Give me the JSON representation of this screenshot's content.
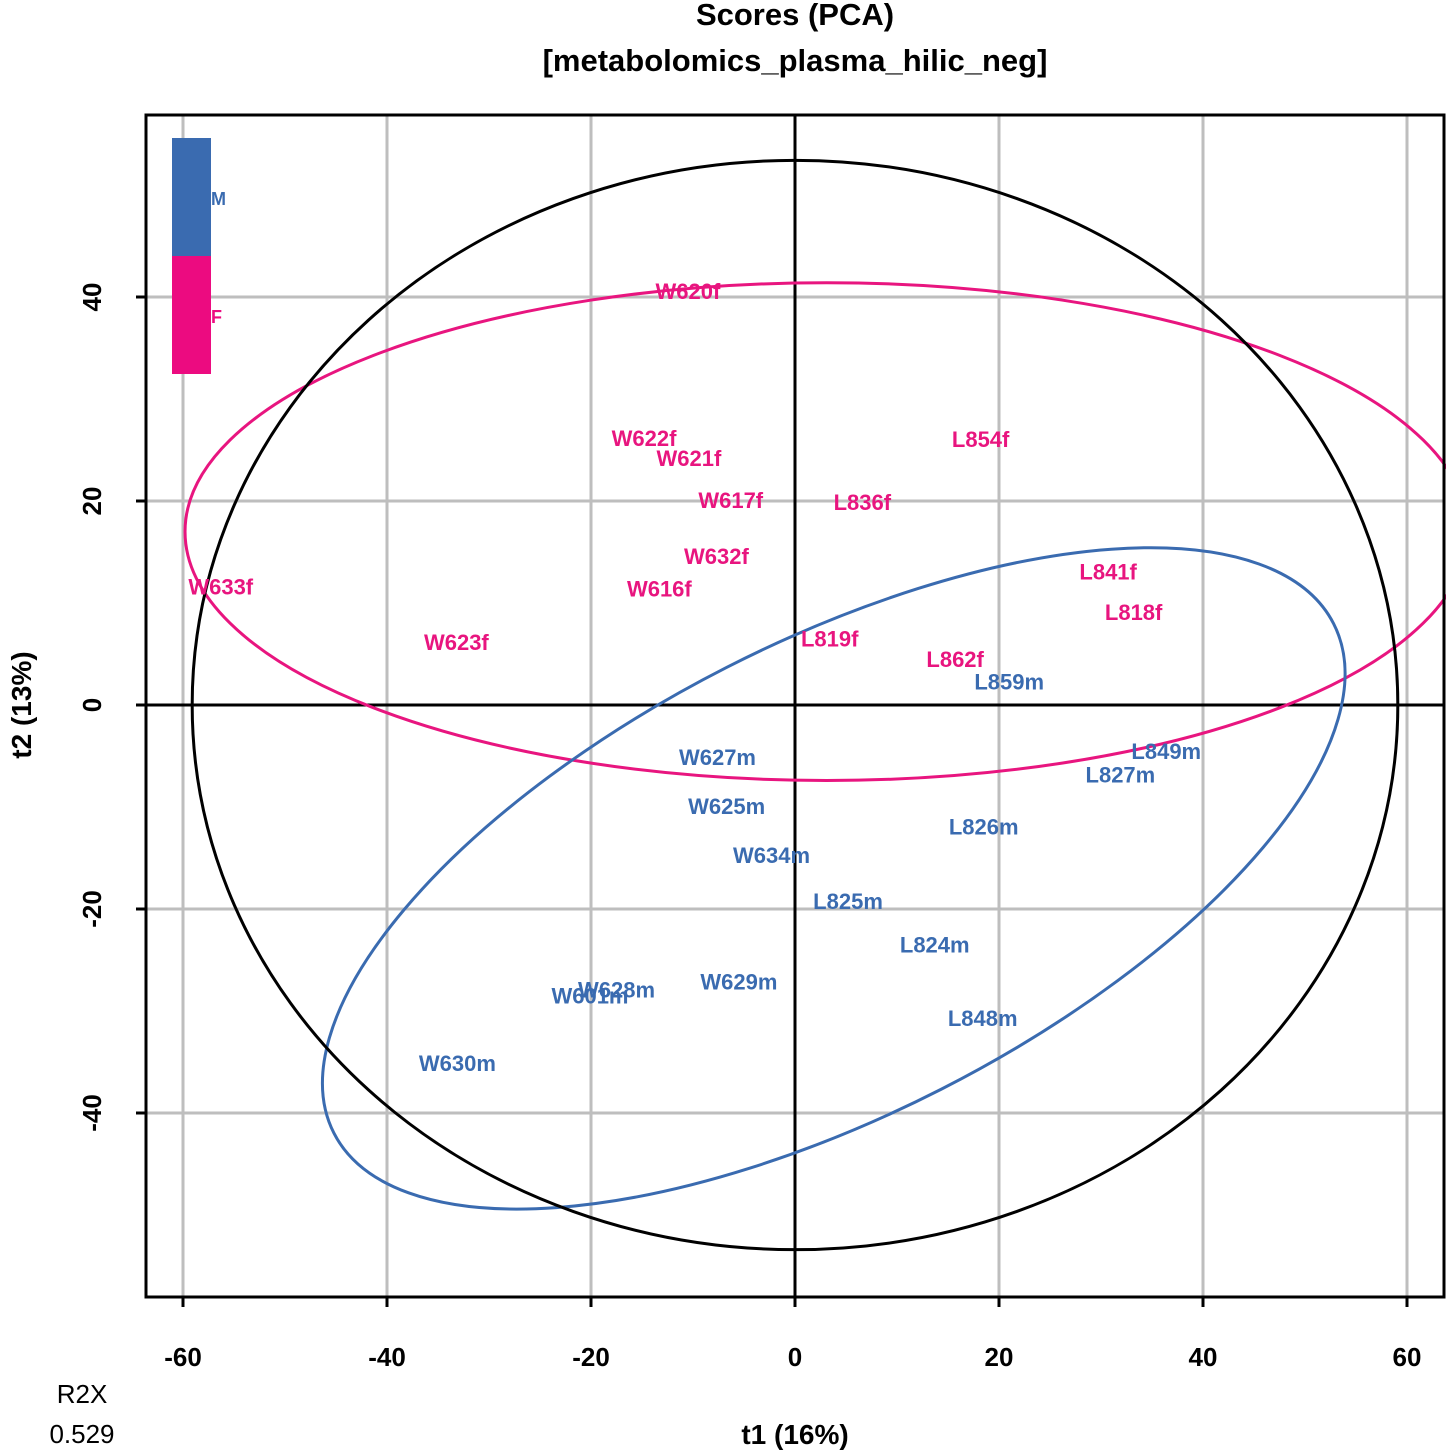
{
  "chart_data": {
    "type": "scatter",
    "title": "Scores (PCA)",
    "subtitle": "[metabolomics_plasma_hilic_neg]",
    "xlabel": "t1 (16%)",
    "ylabel": "t2 (13%)",
    "xlim": [
      -63,
      64
    ],
    "ylim": [
      -58,
      58
    ],
    "xticks": [
      -60,
      -40,
      -20,
      0,
      20,
      40,
      60
    ],
    "yticks": [
      -40,
      -20,
      0,
      20,
      40
    ],
    "grid": true,
    "legend": {
      "placement": "top-left",
      "entries": [
        {
          "label": "M",
          "color": "#3a6bb0"
        },
        {
          "label": "F",
          "color": "#ec0b80"
        }
      ]
    },
    "series": [
      {
        "name": "F",
        "color": "#e8157f",
        "points": [
          {
            "label": "W620f",
            "x": -10.5,
            "y": 40.6
          },
          {
            "label": "W622f",
            "x": -14.8,
            "y": 26.2
          },
          {
            "label": "W621f",
            "x": -10.4,
            "y": 24.2
          },
          {
            "label": "L854f",
            "x": 18.2,
            "y": 26.1
          },
          {
            "label": "W617f",
            "x": -6.3,
            "y": 20.1
          },
          {
            "label": "L836f",
            "x": 6.6,
            "y": 19.9
          },
          {
            "label": "W632f",
            "x": -7.7,
            "y": 14.6
          },
          {
            "label": "W633f",
            "x": -56.3,
            "y": 11.6
          },
          {
            "label": "W616f",
            "x": -13.3,
            "y": 11.4
          },
          {
            "label": "L841f",
            "x": 30.7,
            "y": 13.1
          },
          {
            "label": "L818f",
            "x": 33.2,
            "y": 9.1
          },
          {
            "label": "W623f",
            "x": -33.2,
            "y": 6.2
          },
          {
            "label": "L819f",
            "x": 3.4,
            "y": 6.5
          },
          {
            "label": "L862f",
            "x": 15.7,
            "y": 4.5
          }
        ]
      },
      {
        "name": "M",
        "color": "#3a6bb0",
        "points": [
          {
            "label": "L859m",
            "x": 21.0,
            "y": 2.3
          },
          {
            "label": "L849m",
            "x": 36.4,
            "y": -4.5
          },
          {
            "label": "W627m",
            "x": -7.6,
            "y": -5.1
          },
          {
            "label": "L827m",
            "x": 31.9,
            "y": -6.8
          },
          {
            "label": "W625m",
            "x": -6.7,
            "y": -9.9
          },
          {
            "label": "L826m",
            "x": 18.5,
            "y": -11.9
          },
          {
            "label": "W634m",
            "x": -2.3,
            "y": -14.7
          },
          {
            "label": "L825m",
            "x": 5.2,
            "y": -19.2
          },
          {
            "label": "L824m",
            "x": 13.7,
            "y": -23.5
          },
          {
            "label": "W629m",
            "x": -5.5,
            "y": -27.1
          },
          {
            "label": "W628m",
            "x": -17.5,
            "y": -27.9
          },
          {
            "label": "W601m",
            "x": -20.1,
            "y": -28.5
          },
          {
            "label": "L848m",
            "x": 18.4,
            "y": -30.7
          },
          {
            "label": "W630m",
            "x": -33.1,
            "y": -35.1
          }
        ]
      }
    ],
    "ellipses": [
      {
        "name": "F",
        "center": [
          3.1,
          17.0
        ],
        "semi_axes": [
          62.9,
          24.4
        ],
        "angle_deg": 0
      },
      {
        "name": "M",
        "center": [
          3.8,
          -17.0
        ],
        "semi_axes": [
          55.0,
          23.2
        ],
        "angle_deg": 27
      },
      {
        "name": "hotelling",
        "center": [
          0,
          0
        ],
        "semi_axes": [
          59.1,
          53.4
        ],
        "angle_deg": 0
      }
    ],
    "annotation": {
      "label": "R2X",
      "value": "0.529"
    }
  }
}
